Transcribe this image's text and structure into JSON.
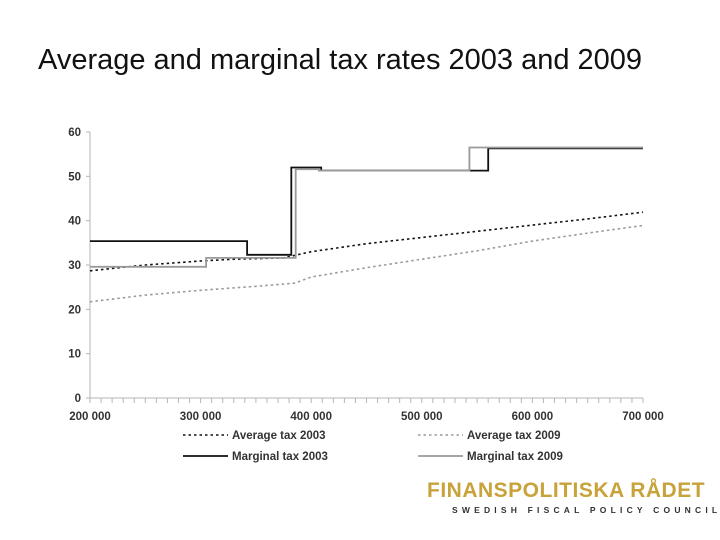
{
  "slide": {
    "title": "Average and marginal tax rates 2003 and 2009"
  },
  "logo": {
    "name": "FINANSPOLITISKA RÅDET",
    "tagline": "SWEDISH FISCAL POLICY COUNCIL",
    "color": "#c8a23a"
  },
  "chart_data": {
    "type": "line",
    "title": "",
    "xlabel": "",
    "ylabel": "",
    "xlim": [
      200000,
      700000
    ],
    "ylim": [
      0,
      60
    ],
    "x_ticks": [
      200000,
      300000,
      400000,
      500000,
      600000,
      700000
    ],
    "x_tick_labels": [
      "200 000",
      "300 000",
      "400 000",
      "500 000",
      "600 000",
      "700 000"
    ],
    "y_ticks": [
      0,
      10,
      20,
      30,
      40,
      50,
      60
    ],
    "y_tick_labels": [
      "0",
      "10",
      "20",
      "30",
      "40",
      "50",
      "60"
    ],
    "grid": false,
    "legend_position": "bottom",
    "series": [
      {
        "name": "Average tax 2003",
        "style": "dotted",
        "color": "#111111",
        "x": [
          200000,
          250000,
          300000,
          330000,
          375000,
          400000,
          450000,
          500000,
          550000,
          600000,
          650000,
          700000
        ],
        "y": [
          28.7,
          30.0,
          30.9,
          31.3,
          31.6,
          33.0,
          34.8,
          36.2,
          37.6,
          39.0,
          40.4,
          41.9
        ]
      },
      {
        "name": "Average tax 2009",
        "style": "dotted",
        "color": "#9a9a9a",
        "x": [
          200000,
          250000,
          300000,
          350000,
          385000,
          400000,
          450000,
          500000,
          550000,
          600000,
          650000,
          700000
        ],
        "y": [
          21.7,
          23.2,
          24.3,
          25.2,
          25.9,
          27.3,
          29.4,
          31.3,
          33.2,
          35.4,
          37.2,
          38.9
        ]
      },
      {
        "name": "Marginal tax 2003",
        "style": "solid",
        "color": "#111111",
        "x": [
          200000,
          342000,
          342000,
          382000,
          382000,
          409000,
          409000,
          560000,
          560000,
          700000
        ],
        "y": [
          35.4,
          35.4,
          32.3,
          32.3,
          52.0,
          52.0,
          51.3,
          51.3,
          56.3,
          56.3
        ]
      },
      {
        "name": "Marginal tax 2009",
        "style": "solid",
        "color": "#9a9a9a",
        "x": [
          200000,
          305000,
          305000,
          386000,
          386000,
          407000,
          407000,
          543000,
          543000,
          700000
        ],
        "y": [
          29.6,
          29.6,
          31.6,
          31.6,
          51.6,
          51.6,
          51.3,
          51.3,
          56.5,
          56.5
        ]
      }
    ]
  }
}
